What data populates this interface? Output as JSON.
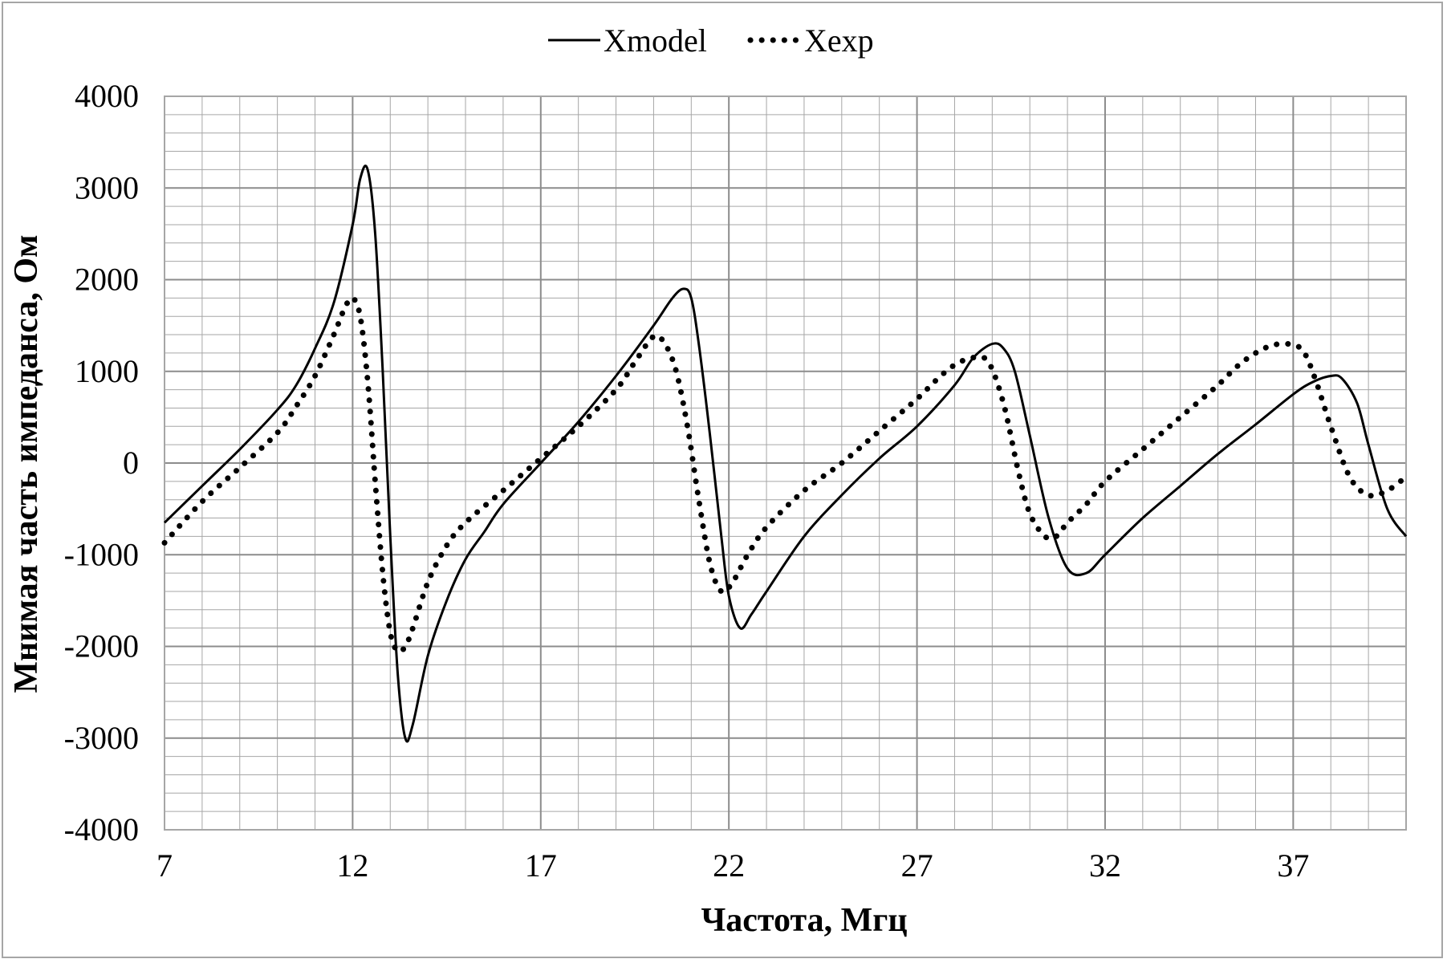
{
  "chart_data": {
    "type": "line",
    "title": "",
    "xlabel": "Частота, Мгц",
    "ylabel": "Мнимая часть импеданса, Ом",
    "xlim": [
      7,
      40
    ],
    "ylim": [
      -4000,
      4000
    ],
    "x_ticks": [
      7,
      12,
      17,
      22,
      27,
      32,
      37
    ],
    "y_ticks": [
      4000,
      3000,
      2000,
      1000,
      0,
      -1000,
      -2000,
      -3000,
      -4000
    ],
    "x_tick_labels": [
      "7",
      "12",
      "17",
      "22",
      "27",
      "32",
      "37"
    ],
    "y_tick_labels": [
      "4000",
      "3000",
      "2000",
      "1000",
      "0",
      "-1000",
      "-2000",
      "-3000",
      "-4000"
    ],
    "grid": true,
    "legend_position": "top",
    "colors": {
      "line": "#000000",
      "grid": "#a6a6a6",
      "frame": "#a6a6a6"
    },
    "series": [
      {
        "name": "Xmodel",
        "style": "solid",
        "x": [
          7,
          8,
          9,
          10,
          10.5,
          11,
          11.5,
          12,
          12.2,
          12.4,
          12.6,
          12.8,
          13,
          13.2,
          13.4,
          13.6,
          14,
          14.5,
          15,
          15.5,
          16,
          17,
          18,
          19,
          20,
          20.5,
          20.8,
          21,
          21.2,
          21.5,
          21.8,
          22,
          22.3,
          22.6,
          23,
          24,
          25,
          26,
          27,
          28,
          28.5,
          29,
          29.3,
          29.6,
          30,
          30.5,
          31,
          31.5,
          32,
          33,
          34,
          35,
          36,
          37,
          37.5,
          38,
          38.3,
          38.7,
          39,
          39.5,
          40
        ],
        "y": [
          -650,
          -250,
          150,
          580,
          850,
          1250,
          1750,
          2600,
          3100,
          3200,
          2500,
          1000,
          -800,
          -2300,
          -3000,
          -2850,
          -2100,
          -1500,
          -1050,
          -750,
          -450,
          0,
          450,
          950,
          1500,
          1800,
          1900,
          1800,
          1300,
          300,
          -800,
          -1450,
          -1800,
          -1650,
          -1400,
          -800,
          -350,
          50,
          400,
          850,
          1150,
          1300,
          1250,
          1000,
          300,
          -600,
          -1150,
          -1200,
          -1000,
          -600,
          -250,
          100,
          420,
          750,
          880,
          950,
          920,
          650,
          200,
          -500,
          -800
        ]
      },
      {
        "name": "Xexp",
        "style": "dotted",
        "x": [
          7,
          8,
          9,
          10,
          10.5,
          11,
          11.5,
          11.8,
          12,
          12.2,
          12.4,
          12.6,
          12.8,
          13,
          13.2,
          13.4,
          13.6,
          14,
          14.5,
          15,
          16,
          17,
          18,
          19,
          19.5,
          20,
          20.3,
          20.6,
          20.9,
          21.2,
          21.5,
          21.8,
          22.1,
          22.5,
          23,
          24,
          25,
          26,
          27,
          27.5,
          28,
          28.5,
          28.9,
          29.3,
          29.7,
          30,
          30.4,
          30.7,
          31,
          31.5,
          32,
          33,
          34,
          35,
          35.5,
          36,
          36.5,
          37,
          37.3,
          37.6,
          38,
          38.5,
          39,
          39.5,
          40
        ],
        "y": [
          -870,
          -420,
          -50,
          330,
          620,
          950,
          1400,
          1700,
          1800,
          1600,
          900,
          -200,
          -1200,
          -1850,
          -2050,
          -2000,
          -1800,
          -1300,
          -900,
          -650,
          -300,
          50,
          400,
          800,
          1100,
          1380,
          1300,
          1000,
          400,
          -400,
          -1100,
          -1400,
          -1300,
          -1000,
          -700,
          -300,
          0,
          350,
          700,
          900,
          1070,
          1150,
          1100,
          650,
          -100,
          -550,
          -800,
          -800,
          -650,
          -450,
          -200,
          150,
          500,
          850,
          1050,
          1200,
          1290,
          1290,
          1200,
          900,
          400,
          -150,
          -350,
          -300,
          -150
        ]
      }
    ]
  }
}
